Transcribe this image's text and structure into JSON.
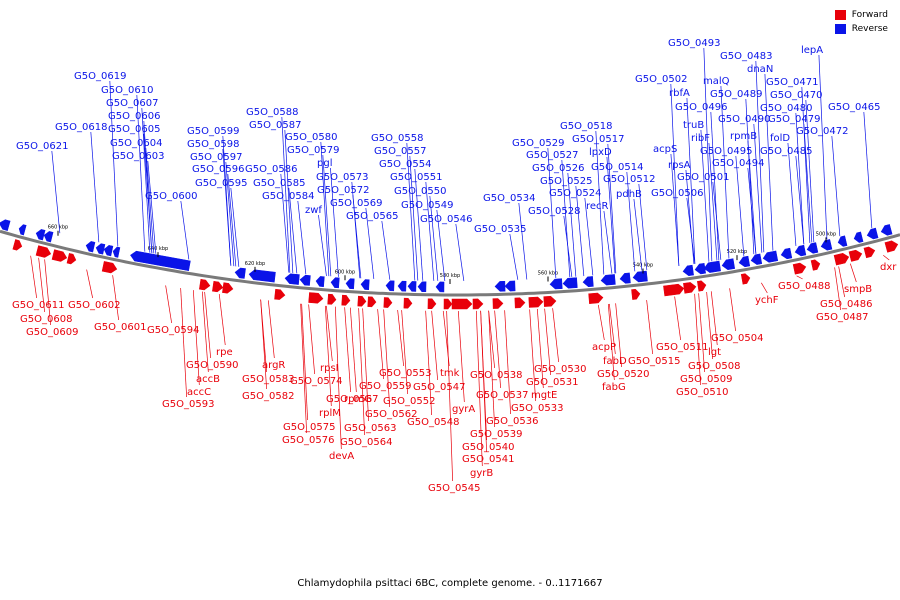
{
  "colors": {
    "forward": "#e8000a",
    "reverse": "#0a14e8",
    "backbone": "#7a7a7a"
  },
  "legend": {
    "forward": "Forward",
    "reverse": "Reverse"
  },
  "caption": "Chlamydophila psittaci 6BC, complete genome. - 0..1171667",
  "ticks": [
    "660 kbp",
    "640 kbp",
    "620 kbp",
    "600 kbp",
    "580 kbp",
    "560 kbp",
    "540 kbp",
    "520 kbp",
    "500 kbp"
  ],
  "reverse_labels": [
    "G5O_0619",
    "G5O_0610",
    "G5O_0607",
    "G5O_0606",
    "G5O_0618",
    "G5O_0605",
    "G5O_0604",
    "G5O_0621",
    "G5O_0603",
    "G5O_0600",
    "G5O_0599",
    "G5O_0598",
    "G5O_0597",
    "G5O_0596",
    "G5O_0595",
    "G5O_0588",
    "G5O_0587",
    "G5O_0586",
    "G5O_0585",
    "G5O_0584",
    "G5O_0580",
    "G5O_0579",
    "pgl",
    "G5O_0573",
    "G5O_0572",
    "zwf",
    "G5O_0569",
    "G5O_0565",
    "G5O_0558",
    "G5O_0557",
    "G5O_0554",
    "G5O_0551",
    "G5O_0550",
    "G5O_0549",
    "G5O_0546",
    "G5O_0529",
    "G5O_0527",
    "G5O_0526",
    "G5O_0525",
    "G5O_0534",
    "G5O_0528",
    "G5O_0535",
    "G5O_0518",
    "G5O_0517",
    "lpxD",
    "G5O_0514",
    "G5O_0524",
    "G5O_0512",
    "recR",
    "pdhB",
    "G5O_0493",
    "G5O_0483",
    "dnaN",
    "malQ",
    "G5O_0502",
    "rbfA",
    "G5O_0489",
    "lepA",
    "G5O_0471",
    "G5O_0496",
    "G5O_0470",
    "G5O_0480",
    "truB",
    "G5O_0490",
    "G5O_0479",
    "ribF",
    "rpmB",
    "G5O_0472",
    "acpS",
    "rpsA",
    "G5O_0495",
    "G5O_0485",
    "folD",
    "G5O_0494",
    "G5O_0501",
    "G5O_0506",
    "G5O_0465"
  ],
  "forward_labels": [
    "G5O_0611",
    "G5O_0602",
    "G5O_0608",
    "G5O_0609",
    "G5O_0601",
    "G5O_0594",
    "rpe",
    "G5O_0590",
    "accB",
    "accC",
    "G5O_0593",
    "argR",
    "G5O_0583",
    "G5O_0582",
    "rpsI",
    "G5O_0574",
    "G5O_0567",
    "rplM",
    "G5O_0575",
    "G5O_0576",
    "rpmG",
    "G5O_0559",
    "G5O_0562",
    "G5O_0563",
    "G5O_0564",
    "devA",
    "G5O_0553",
    "G5O_0552",
    "tmk",
    "G5O_0547",
    "G5O_0548",
    "gyrA",
    "G5O_0545",
    "G5O_0538",
    "G5O_0537",
    "G5O_0536",
    "G5O_0539",
    "G5O_0540",
    "G5O_0541",
    "gyrB",
    "G5O_0530",
    "G5O_0531",
    "mgtE",
    "G5O_0533",
    "acpP",
    "fabD",
    "G5O_0520",
    "fabG",
    "G5O_0515",
    "G5O_0511",
    "lgt",
    "G5O_0504",
    "G5O_0508",
    "G5O_0509",
    "G5O_0510",
    "ychF",
    "G5O_0488",
    "smpB",
    "G5O_0486",
    "G5O_0487",
    "dxr"
  ]
}
